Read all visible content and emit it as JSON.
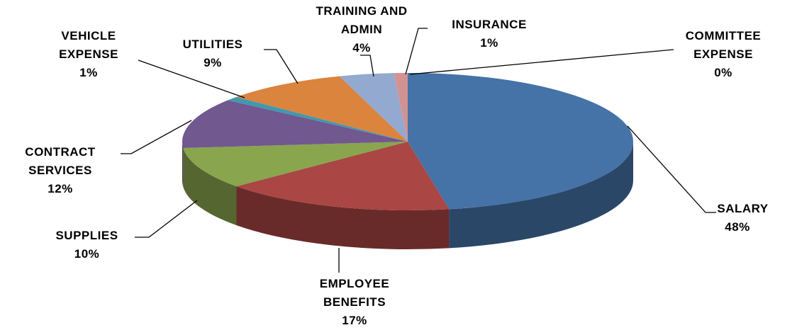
{
  "chart_data": {
    "type": "pie3d",
    "categories": [
      "SALARY",
      "EMPLOYEE BENEFITS",
      "SUPPLIES",
      "CONTRACT SERVICES",
      "VEHICLE EXPENSE",
      "UTILITIES",
      "TRAINING AND ADMIN",
      "INSURANCE",
      "COMMITTEE EXPENSE"
    ],
    "values": [
      48,
      17,
      10,
      12,
      1,
      9,
      4,
      1,
      0
    ],
    "value_labels": [
      "48%",
      "17%",
      "10%",
      "12%",
      "1%",
      "9%",
      "4%",
      "1%",
      "0%"
    ],
    "colors": [
      "#4572a7",
      "#aa4643",
      "#89a54e",
      "#71588f",
      "#4198af",
      "#db843d",
      "#93a9cf",
      "#d19392",
      "#b9cd96"
    ]
  }
}
